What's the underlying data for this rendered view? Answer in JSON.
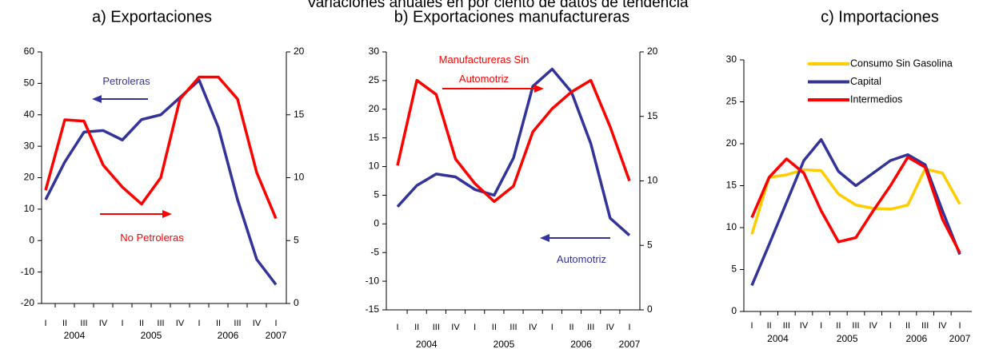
{
  "title": "Variaciones anuales en por ciento de datos de tendencia",
  "chart_data": [
    {
      "type": "line",
      "title": "a) Exportaciones",
      "categories": [
        "I",
        "II",
        "III",
        "IV",
        "I",
        "II",
        "III",
        "IV",
        "I",
        "II",
        "III",
        "IV",
        "I"
      ],
      "groups": [
        {
          "label": "2004",
          "span": 4
        },
        {
          "label": "2005",
          "span": 4
        },
        {
          "label": "2006",
          "span": 4
        },
        {
          "label": "2007",
          "span": 1
        }
      ],
      "ylim": [
        -20,
        60
      ],
      "yticks": [
        -20,
        -10,
        0,
        10,
        20,
        30,
        40,
        50,
        60
      ],
      "y2lim": [
        0,
        20
      ],
      "y2ticks": [
        0,
        5,
        10,
        15,
        20
      ],
      "series": [
        {
          "name": "Petroleras",
          "color": "#333399",
          "values": [
            13,
            25,
            34.5,
            35,
            32,
            38.5,
            40,
            45.5,
            51,
            36,
            13,
            -6,
            -14
          ]
        },
        {
          "name": "No Petroleras",
          "color": "#ff0000",
          "axis": "y2",
          "values": [
            9,
            14.6,
            14.5,
            11,
            9.25,
            7.9,
            10,
            16.25,
            18,
            18,
            16.25,
            10.4,
            6.75
          ]
        }
      ]
    },
    {
      "type": "line",
      "title": "b) Exportaciones manufactureras",
      "categories": [
        "I",
        "II",
        "III",
        "IV",
        "I",
        "II",
        "III",
        "IV",
        "I",
        "II",
        "III",
        "IV",
        "I"
      ],
      "groups": [
        {
          "label": "2004",
          "span": 4
        },
        {
          "label": "2005",
          "span": 4
        },
        {
          "label": "2006",
          "span": 4
        },
        {
          "label": "2007",
          "span": 1
        }
      ],
      "ylim": [
        -15,
        30
      ],
      "yticks": [
        -15,
        -10,
        -5,
        0,
        5,
        10,
        15,
        20,
        25,
        30
      ],
      "y2lim": [
        0,
        20
      ],
      "y2ticks": [
        0,
        5,
        10,
        15,
        20
      ],
      "series": [
        {
          "name": "Automotriz",
          "color": "#333399",
          "values": [
            3,
            6.7,
            8.7,
            8.2,
            6,
            5,
            11.5,
            24,
            27,
            23,
            14,
            1,
            -2
          ]
        },
        {
          "name": "Manufactureras Sin Automotriz",
          "color": "#ff0000",
          "axis": "y2",
          "values": [
            11.2,
            17.8,
            16.7,
            11.7,
            9.8,
            8.4,
            9.6,
            13.8,
            15.6,
            16.9,
            17.8,
            14.2,
            10
          ]
        }
      ]
    },
    {
      "type": "line",
      "title": "c) Importaciones",
      "categories": [
        "I",
        "II",
        "III",
        "IV",
        "I",
        "II",
        "III",
        "IV",
        "I",
        "II",
        "III",
        "IV",
        "I"
      ],
      "groups": [
        {
          "label": "2004",
          "span": 4
        },
        {
          "label": "2005",
          "span": 4
        },
        {
          "label": "2006",
          "span": 4
        },
        {
          "label": "2007",
          "span": 1
        }
      ],
      "ylim": [
        0,
        30
      ],
      "yticks": [
        0,
        5,
        10,
        15,
        20,
        25,
        30
      ],
      "legend": "upper right",
      "series": [
        {
          "name": "Consumo Sin Gasolina",
          "color": "#ffcc00",
          "values": [
            9.2,
            16,
            16.3,
            16.9,
            16.8,
            14,
            12.7,
            12.3,
            12.2,
            12.7,
            17,
            16.5,
            12.8
          ]
        },
        {
          "name": "Capital",
          "color": "#333399",
          "values": [
            3.1,
            8,
            13,
            18,
            20.5,
            16.7,
            15,
            16.5,
            18,
            18.7,
            17.5,
            12,
            6.8
          ]
        },
        {
          "name": "Intermedios",
          "color": "#ff0000",
          "values": [
            11.2,
            16,
            18.2,
            16.5,
            12,
            8.3,
            8.8,
            12,
            15,
            18.4,
            17.2,
            11,
            7
          ]
        }
      ]
    }
  ]
}
